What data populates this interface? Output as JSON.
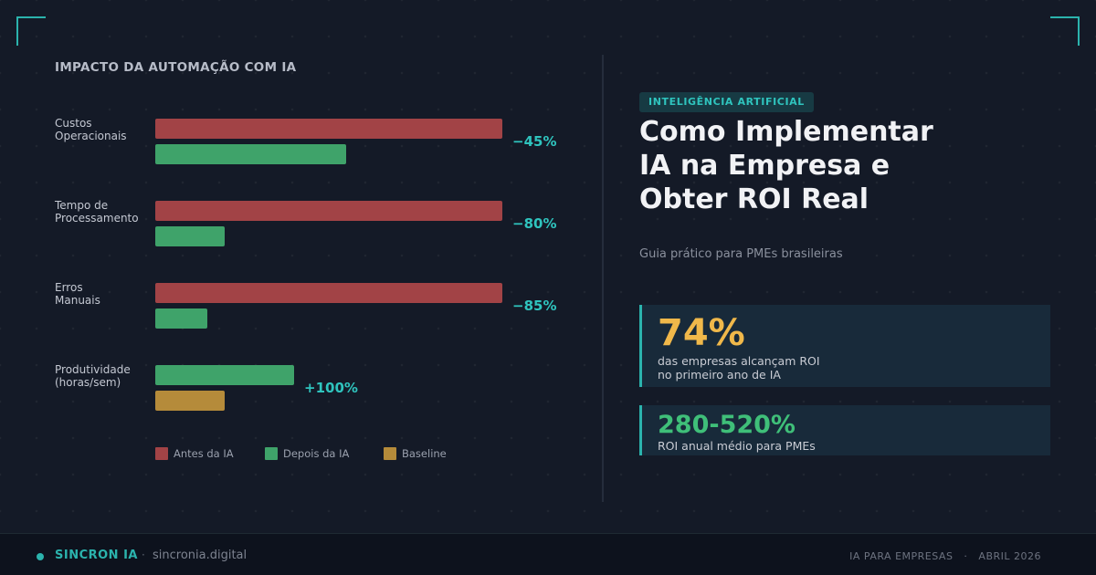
{
  "chart_data": {
    "type": "bar",
    "orientation": "horizontal",
    "title": "IMPACTO DA AUTOMAÇÃO COM IA",
    "categories": [
      [
        "Custos",
        "Operacionais"
      ],
      [
        "Tempo de",
        "Processamento"
      ],
      [
        "Erros",
        "Manuais"
      ],
      [
        "Produtividade",
        "(horas/sem)"
      ]
    ],
    "series": [
      {
        "name": "Antes da IA",
        "color": "#a24346",
        "values": [
          100,
          100,
          100,
          null
        ]
      },
      {
        "name": "Depois da IA",
        "color": "#3fa36a",
        "values": [
          55,
          20,
          15,
          40
        ]
      },
      {
        "name": "Baseline",
        "color": "#b58b3a",
        "values": [
          null,
          null,
          null,
          20
        ]
      }
    ],
    "change_labels": [
      "−45%",
      "−80%",
      "−85%",
      "+100%"
    ],
    "xlim": [
      0,
      100
    ],
    "grid": false,
    "legend_position": "bottom"
  },
  "article": {
    "tag": "INTELIGÊNCIA ARTIFICIAL",
    "title_lines": [
      "Como Implementar",
      "IA na Empresa e",
      "Obter ROI Real"
    ],
    "subtitle": "Guia prático para PMEs brasileiras"
  },
  "stats": [
    {
      "value": "74%",
      "text": "das empresas alcançam ROI\nno primeiro ano de IA",
      "color": "#f0b84a"
    },
    {
      "value": "280-520%",
      "text": "ROI anual médio para PMEs",
      "color": "#3fbf79"
    }
  ],
  "footer": {
    "brand": "SINCRON IA",
    "separator": "·",
    "domain": "sincronia.digital",
    "category": "IA PARA EMPRESAS",
    "date": "ABRIL 2026"
  },
  "colors": {
    "accent": "#2bb3ad",
    "background": "#141a27"
  }
}
